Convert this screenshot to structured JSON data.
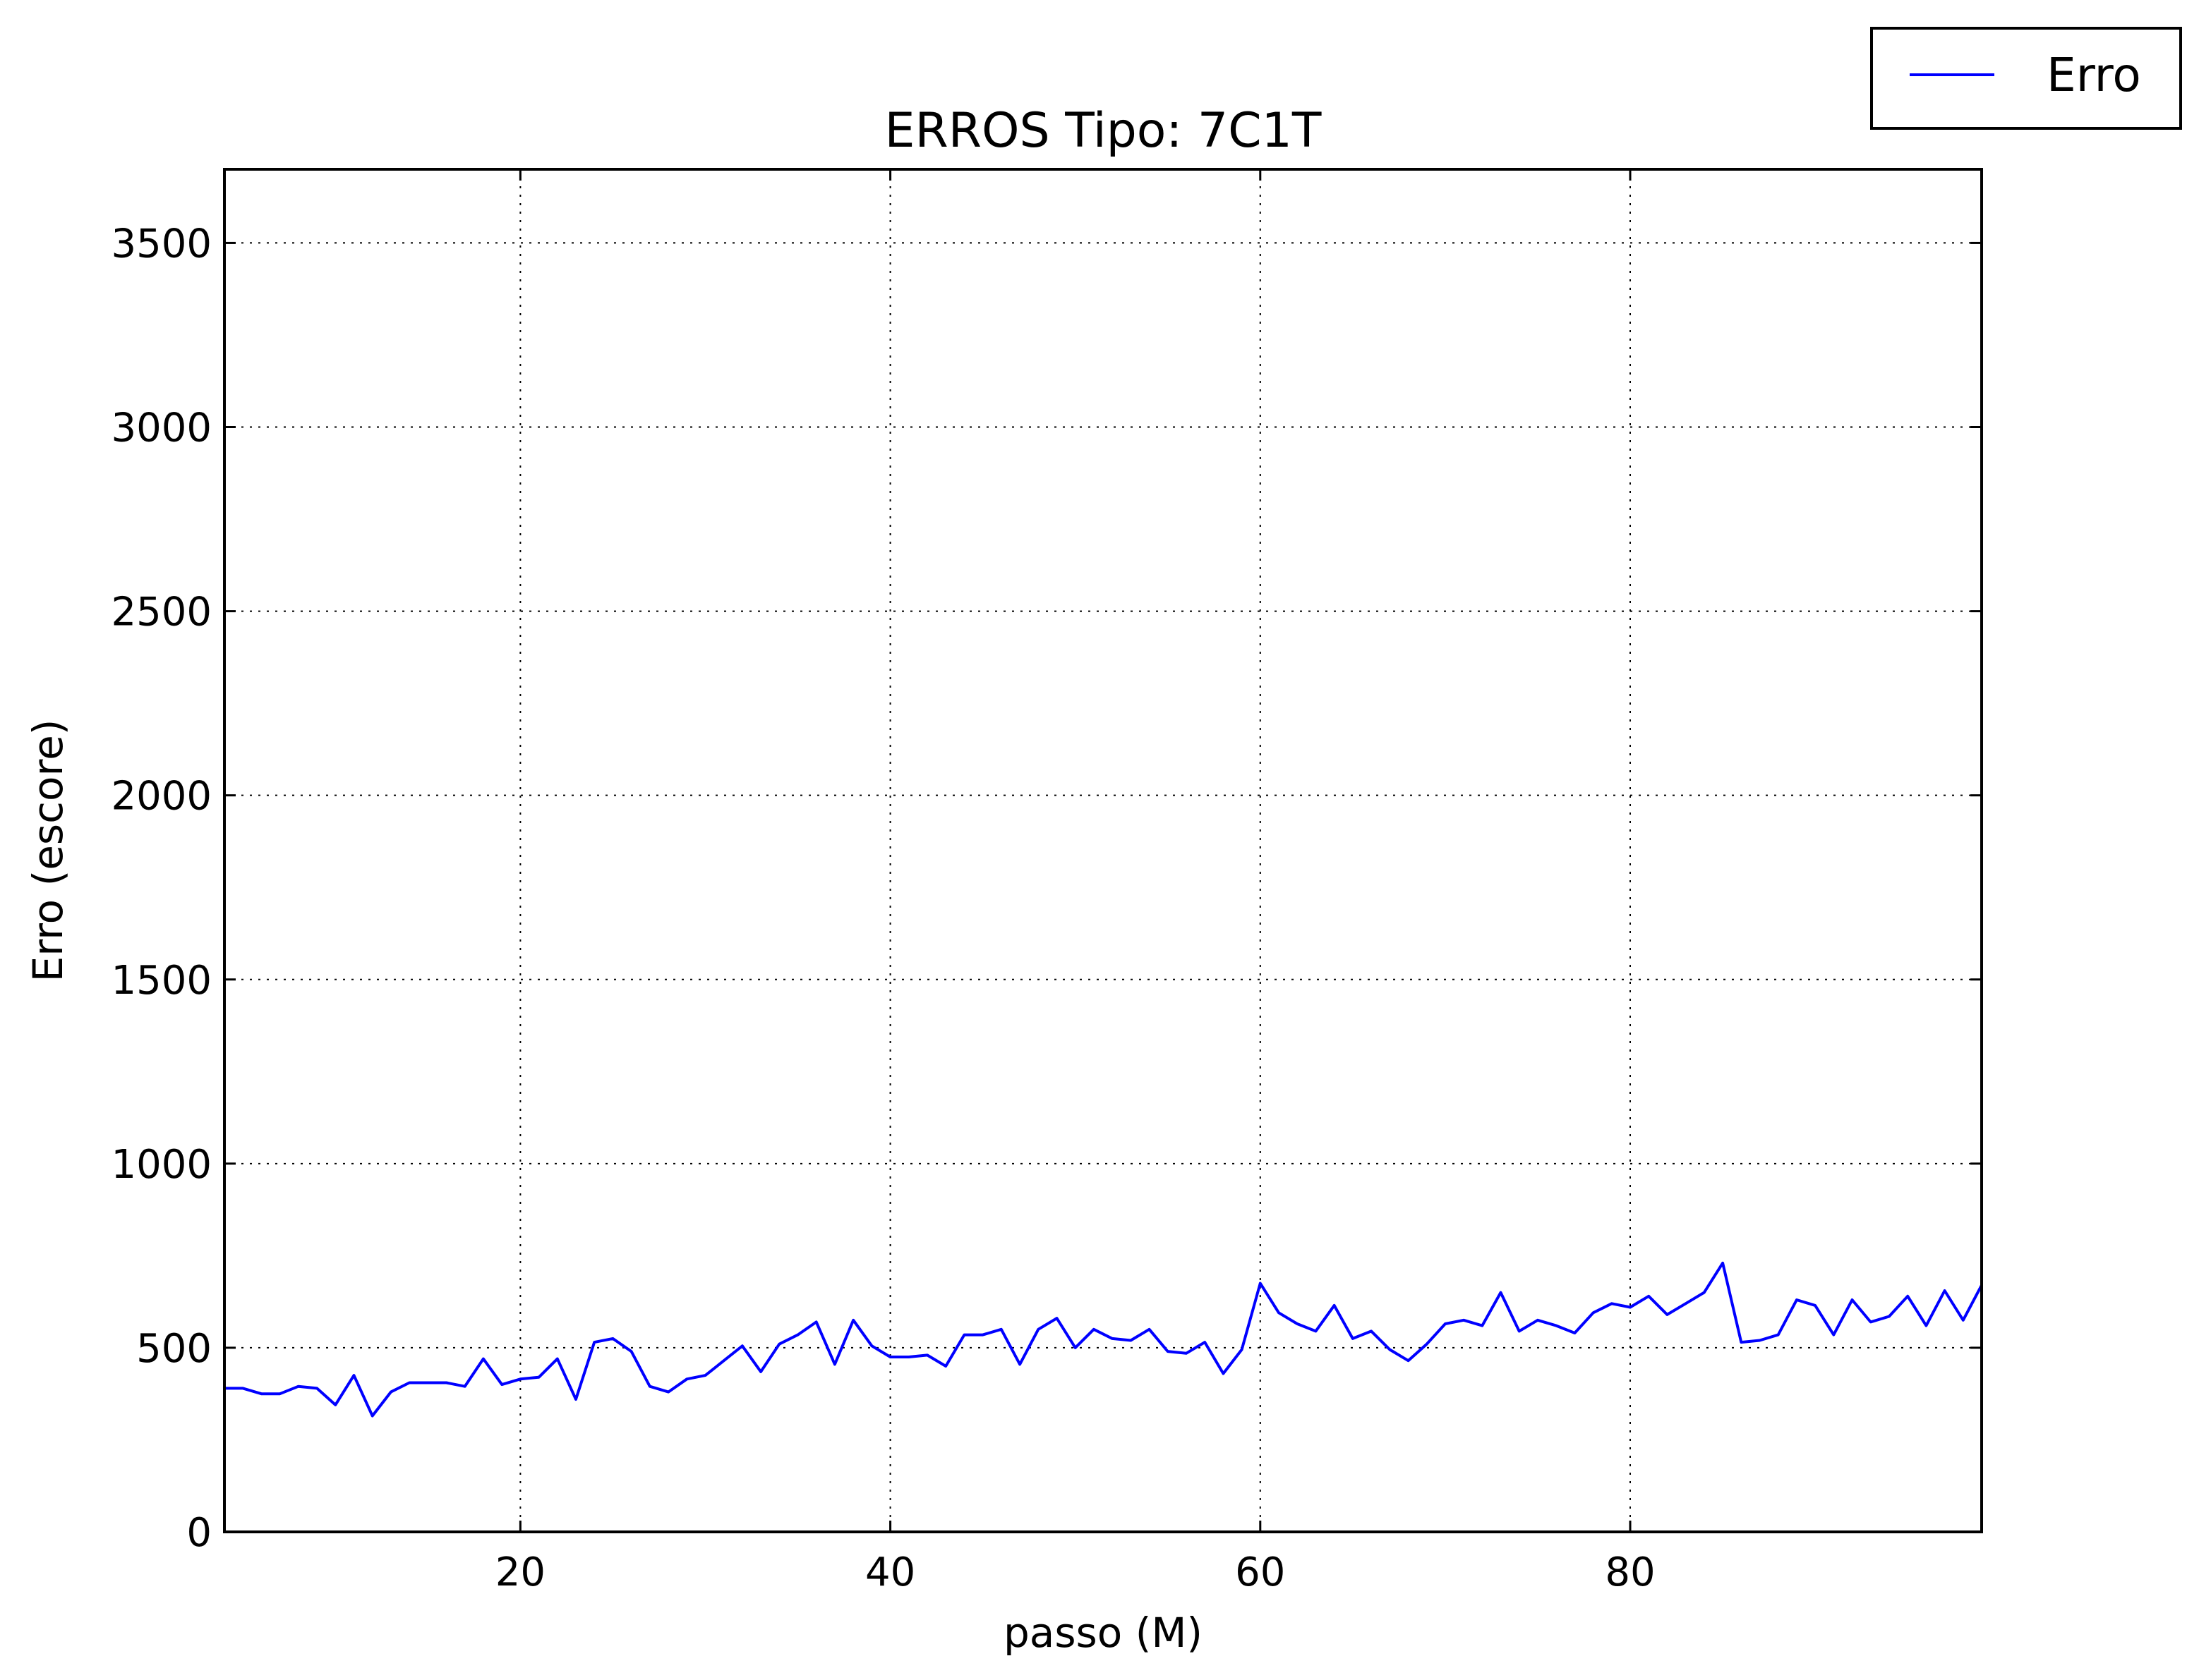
{
  "chart_data": {
    "type": "line",
    "title": "ERROS Tipo: 7C1T",
    "xlabel": "passo (M)",
    "ylabel": "Erro (escore)",
    "xlim": [
      4,
      99
    ],
    "ylim": [
      0,
      3700
    ],
    "xticks": [
      20,
      40,
      60,
      80
    ],
    "yticks": [
      0,
      500,
      1000,
      1500,
      2000,
      2500,
      3000,
      3500
    ],
    "grid": true,
    "legend": {
      "position": "top-right",
      "entries": [
        "Erro"
      ]
    },
    "series": [
      {
        "name": "Erro",
        "color": "#0000ff",
        "x": [
          4,
          5,
          6,
          7,
          8,
          9,
          10,
          11,
          12,
          13,
          14,
          15,
          16,
          17,
          18,
          19,
          20,
          21,
          22,
          23,
          24,
          25,
          26,
          27,
          28,
          29,
          30,
          31,
          32,
          33,
          34,
          35,
          36,
          37,
          38,
          39,
          40,
          41,
          42,
          43,
          44,
          45,
          46,
          47,
          48,
          49,
          50,
          51,
          52,
          53,
          54,
          55,
          56,
          57,
          58,
          59,
          60,
          61,
          62,
          63,
          64,
          65,
          66,
          67,
          68,
          69,
          70,
          71,
          72,
          73,
          74,
          75,
          76,
          77,
          78,
          79,
          80,
          81,
          82,
          83,
          84,
          85,
          86,
          87,
          88,
          89,
          90,
          91,
          92,
          93,
          94,
          95,
          96,
          97,
          98,
          99
        ],
        "y": [
          390,
          390,
          375,
          375,
          395,
          390,
          345,
          425,
          315,
          380,
          405,
          405,
          405,
          395,
          470,
          400,
          415,
          420,
          470,
          360,
          515,
          525,
          490,
          395,
          380,
          415,
          425,
          465,
          505,
          435,
          510,
          535,
          570,
          455,
          575,
          505,
          475,
          475,
          480,
          450,
          535,
          535,
          550,
          455,
          550,
          580,
          500,
          550,
          525,
          520,
          550,
          490,
          485,
          515,
          430,
          495,
          675,
          595,
          565,
          545,
          615,
          525,
          545,
          495,
          465,
          510,
          565,
          575,
          560,
          650,
          545,
          575,
          560,
          540,
          595,
          620,
          610,
          640,
          590,
          620,
          650,
          730,
          515,
          520,
          535,
          630,
          615,
          535,
          630,
          570,
          585,
          640,
          560,
          655,
          575,
          670
        ]
      }
    ]
  }
}
